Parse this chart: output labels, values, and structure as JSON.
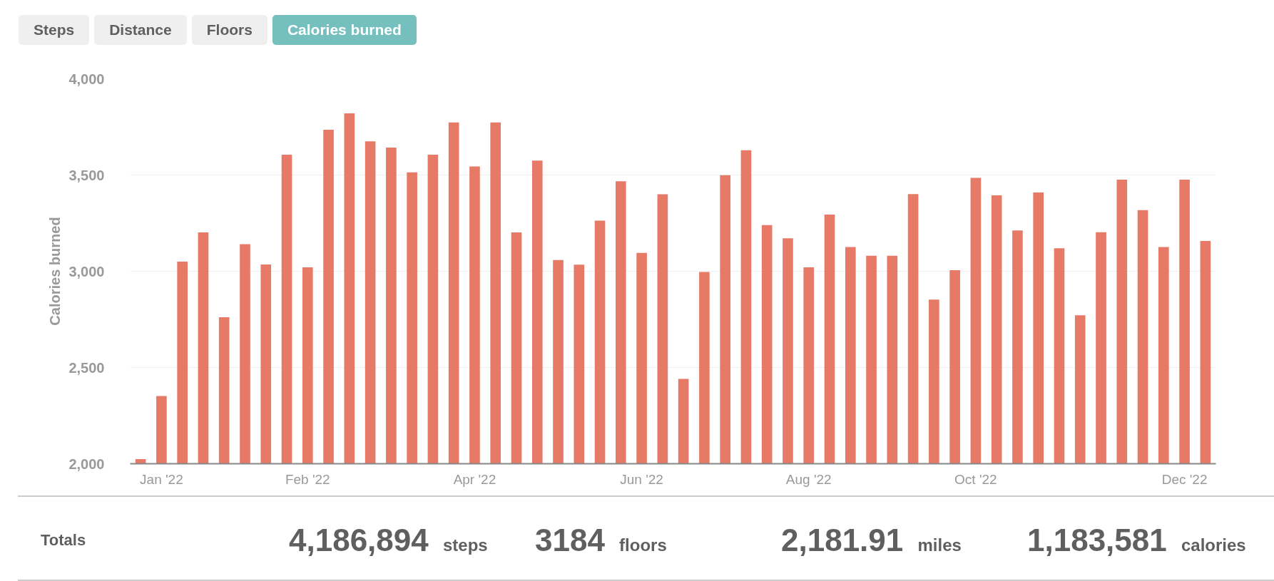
{
  "chart_data": {
    "type": "bar",
    "ylabel": "Calories burned",
    "categories": [
      null,
      "Jan '22",
      null,
      null,
      null,
      null,
      null,
      null,
      "Feb '22",
      null,
      null,
      null,
      null,
      null,
      null,
      null,
      "Apr '22",
      null,
      null,
      null,
      null,
      null,
      null,
      null,
      "Jun '22",
      null,
      null,
      null,
      null,
      null,
      null,
      null,
      "Aug '22",
      null,
      null,
      null,
      null,
      null,
      null,
      null,
      "Oct '22",
      null,
      null,
      null,
      null,
      null,
      null,
      null,
      null,
      null,
      "Dec '22",
      null
    ],
    "values": [
      2024,
      2352,
      3050,
      3202,
      2761,
      3141,
      3035,
      3606,
      3020,
      3735,
      3820,
      3675,
      3643,
      3514,
      3606,
      3773,
      3544,
      3773,
      3202,
      3575,
      3058,
      3034,
      3263,
      3468,
      3095,
      3400,
      2441,
      2996,
      3499,
      3629,
      3240,
      3171,
      3020,
      3294,
      3126,
      3081,
      3081,
      3401,
      2853,
      3006,
      3485,
      3394,
      3212,
      3409,
      3119,
      2771,
      3203,
      3476,
      3318,
      3126,
      3476,
      3157
    ],
    "color": "#e67a67",
    "ylim": [
      2000,
      4000
    ],
    "yticks": [
      {
        "value": 2000,
        "label": "2,000"
      },
      {
        "value": 2500,
        "label": "2,500"
      },
      {
        "value": 3000,
        "label": "3,000"
      },
      {
        "value": 3500,
        "label": "3,500"
      },
      {
        "value": 4000,
        "label": "4,000"
      }
    ],
    "grid": "y",
    "annotations": [
      "Steps",
      "Distance",
      "Floors",
      "Calories burned",
      "Totals",
      "4,186,894 steps",
      "3184 floors",
      "2,181.91 miles",
      "1,183,581 calories"
    ]
  }
}
